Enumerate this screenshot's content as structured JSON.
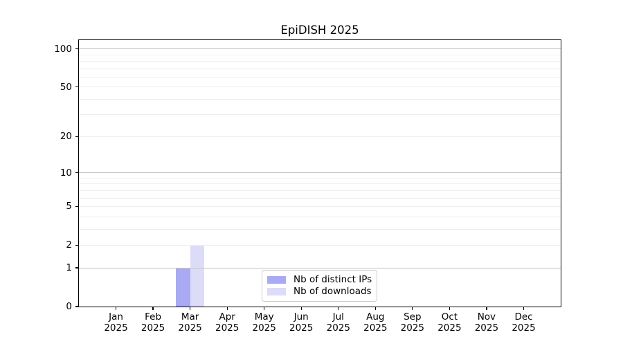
{
  "chart_data": {
    "type": "bar",
    "title": "EpiDISH 2025",
    "categories": [
      {
        "month": "Jan",
        "year": "2025"
      },
      {
        "month": "Feb",
        "year": "2025"
      },
      {
        "month": "Mar",
        "year": "2025"
      },
      {
        "month": "Apr",
        "year": "2025"
      },
      {
        "month": "May",
        "year": "2025"
      },
      {
        "month": "Jun",
        "year": "2025"
      },
      {
        "month": "Jul",
        "year": "2025"
      },
      {
        "month": "Aug",
        "year": "2025"
      },
      {
        "month": "Sep",
        "year": "2025"
      },
      {
        "month": "Oct",
        "year": "2025"
      },
      {
        "month": "Nov",
        "year": "2025"
      },
      {
        "month": "Dec",
        "year": "2025"
      }
    ],
    "series": [
      {
        "name": "Nb of distinct IPs",
        "color": "#a9a9f4",
        "values": [
          0,
          0,
          1,
          0,
          0,
          0,
          0,
          0,
          0,
          0,
          0,
          0
        ]
      },
      {
        "name": "Nb of downloads",
        "color": "#dcdcf8",
        "values": [
          0,
          0,
          2,
          0,
          0,
          0,
          0,
          0,
          0,
          0,
          0,
          0
        ]
      }
    ],
    "y_axis": {
      "scale": "log1p",
      "tick_labels": [
        0,
        1,
        2,
        5,
        10,
        20,
        50,
        100
      ],
      "major_gridlines": [
        1,
        10,
        100
      ],
      "minor_gridlines": [
        2,
        3,
        4,
        5,
        6,
        7,
        8,
        9,
        20,
        30,
        40,
        50,
        60,
        70,
        80,
        90
      ],
      "max_value": 117
    },
    "x_axis": {
      "units": 13
    },
    "bar_width_units": 0.39,
    "legend_position": "lower center",
    "grid": true,
    "colors": {
      "grid_major": "#c4c4c4",
      "grid_minor": "#ededed",
      "spine": "#000000",
      "legend_border": "#cccccc",
      "background": "#ffffff",
      "text": "#000000"
    }
  }
}
